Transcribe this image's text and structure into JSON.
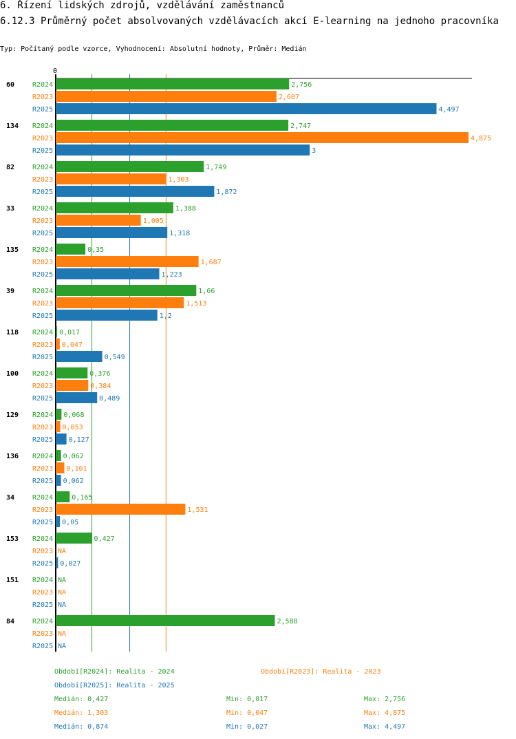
{
  "header": {
    "section": "6. Řízení lidských zdrojů, vzdělávání zaměstnanců",
    "title": "6.12.3 Průměrný počet absolvovaných vzdělávacích akcí E-learning na jednoho pracovníka",
    "subtitle": "Typ: Počítaný podle vzorce, Vyhodnocení: Absolutní hodnoty, Průměr: Medián"
  },
  "chart_data": {
    "type": "bar",
    "orientation": "horizontal",
    "axis_zero_label": "0",
    "xlim": [
      0,
      4.875
    ],
    "categories": [
      "60",
      "134",
      "82",
      "33",
      "135",
      "39",
      "118",
      "100",
      "129",
      "136",
      "34",
      "153",
      "151",
      "84"
    ],
    "series": [
      {
        "name": "R2024",
        "color": "#2ca02c",
        "values": [
          2.756,
          2.747,
          1.749,
          1.388,
          0.35,
          1.66,
          0.017,
          0.376,
          0.068,
          0.062,
          0.165,
          0.427,
          null,
          2.588
        ],
        "labels": [
          "2,756",
          "2,747",
          "1,749",
          "1,388",
          "0,35",
          "1,66",
          "0,017",
          "0,376",
          "0,068",
          "0,062",
          "0,165",
          "0,427",
          "NA",
          "2,588"
        ]
      },
      {
        "name": "R2023",
        "color": "#ff7f0e",
        "values": [
          2.607,
          4.875,
          1.303,
          1.005,
          1.687,
          1.513,
          0.047,
          0.384,
          0.053,
          0.101,
          1.531,
          null,
          null,
          null
        ],
        "labels": [
          "2,607",
          "4,875",
          "1,303",
          "1,005",
          "1,687",
          "1,513",
          "0,047",
          "0,384",
          "0,053",
          "0,101",
          "1,531",
          "NA",
          "NA",
          "NA"
        ]
      },
      {
        "name": "R2025",
        "color": "#1f77b4",
        "values": [
          4.497,
          3,
          1.872,
          1.318,
          1.223,
          1.2,
          0.549,
          0.489,
          0.127,
          0.062,
          0.05,
          0.027,
          null,
          null
        ],
        "labels": [
          "4,497",
          "3",
          "1,872",
          "1,318",
          "1,223",
          "1,2",
          "0,549",
          "0,489",
          "0,127",
          "0,062",
          "0,05",
          "0,027",
          "NA",
          "NA"
        ]
      }
    ],
    "legend": [
      {
        "text": "Období[R2024]: Realita - 2024",
        "color": "#2ca02c"
      },
      {
        "text": "Období[R2023]: Realita - 2023",
        "color": "#ff7f0e"
      },
      {
        "text": "Období[R2025]: Realita - 2025",
        "color": "#1f77b4"
      }
    ],
    "stats": [
      {
        "median": 0.427,
        "median_label": "Medián: 0,427",
        "min_label": "Min: 0,017",
        "max_label": "Max: 2,756",
        "color": "#2ca02c"
      },
      {
        "median": 1.303,
        "median_label": "Medián: 1,303",
        "min_label": "Min: 0,047",
        "max_label": "Max: 4,875",
        "color": "#ff7f0e"
      },
      {
        "median": 0.874,
        "median_label": "Medián: 0,874",
        "min_label": "Min: 0,027",
        "max_label": "Max: 4,497",
        "color": "#1f77b4"
      }
    ]
  }
}
